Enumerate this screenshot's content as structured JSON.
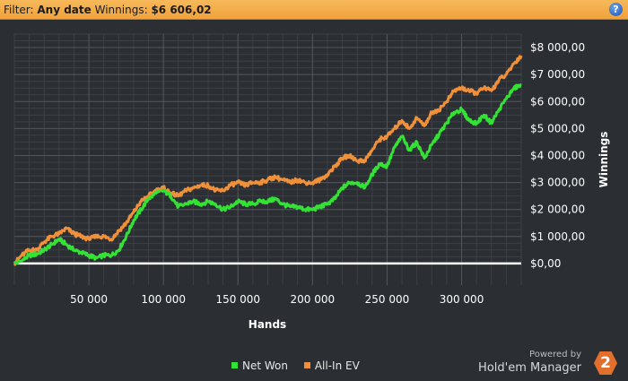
{
  "filter_bar": {
    "filter_label": "Filter:",
    "date_value": "Any date",
    "winnings_label": "Winnings:",
    "winnings_value": "$6 606,02"
  },
  "colors": {
    "net_won": "#33e234",
    "all_in_ev": "#f0913a",
    "zero_line": "#ffffff",
    "accent_bar": "#f0a23c"
  },
  "branding": {
    "powered_by": "Powered by",
    "product": "Hold'em Manager",
    "logo_number": "2"
  },
  "chart_data": {
    "type": "line",
    "xlabel": "Hands",
    "ylabel": "Winnings",
    "xlim": [
      0,
      340000
    ],
    "ylim": [
      -800,
      8500
    ],
    "x_ticks": [
      50000,
      100000,
      150000,
      200000,
      250000,
      300000
    ],
    "x_tick_labels": [
      "50 000",
      "100 000",
      "150 000",
      "200 000",
      "250 000",
      "300 000"
    ],
    "y_ticks": [
      0,
      1000,
      2000,
      3000,
      4000,
      5000,
      6000,
      7000,
      8000
    ],
    "y_tick_labels": [
      "$0,00",
      "$1 000,00",
      "$2 000,00",
      "$3 000,00",
      "$4 000,00",
      "$5 000,00",
      "$6 000,00",
      "$7 000,00",
      "$8 000,00"
    ],
    "legend_position": "bottom-center",
    "grid": true,
    "series": [
      {
        "name": "Net Won",
        "color": "#33e234",
        "points": [
          [
            0,
            0
          ],
          [
            5000,
            100
          ],
          [
            10000,
            300
          ],
          [
            15000,
            350
          ],
          [
            20000,
            500
          ],
          [
            25000,
            700
          ],
          [
            30000,
            900
          ],
          [
            35000,
            700
          ],
          [
            40000,
            500
          ],
          [
            45000,
            400
          ],
          [
            50000,
            300
          ],
          [
            55000,
            200
          ],
          [
            60000,
            300
          ],
          [
            65000,
            300
          ],
          [
            70000,
            500
          ],
          [
            75000,
            1000
          ],
          [
            80000,
            1600
          ],
          [
            85000,
            2000
          ],
          [
            90000,
            2400
          ],
          [
            95000,
            2600
          ],
          [
            100000,
            2700
          ],
          [
            105000,
            2500
          ],
          [
            110000,
            2100
          ],
          [
            115000,
            2200
          ],
          [
            120000,
            2300
          ],
          [
            125000,
            2200
          ],
          [
            130000,
            2300
          ],
          [
            135000,
            2200
          ],
          [
            140000,
            2000
          ],
          [
            145000,
            2100
          ],
          [
            150000,
            2300
          ],
          [
            155000,
            2200
          ],
          [
            160000,
            2200
          ],
          [
            165000,
            2300
          ],
          [
            170000,
            2300
          ],
          [
            175000,
            2400
          ],
          [
            180000,
            2200
          ],
          [
            185000,
            2100
          ],
          [
            190000,
            2100
          ],
          [
            195000,
            2000
          ],
          [
            200000,
            2000
          ],
          [
            205000,
            2100
          ],
          [
            210000,
            2200
          ],
          [
            215000,
            2400
          ],
          [
            220000,
            2800
          ],
          [
            225000,
            3000
          ],
          [
            230000,
            3000
          ],
          [
            235000,
            2800
          ],
          [
            240000,
            3300
          ],
          [
            245000,
            3700
          ],
          [
            250000,
            3600
          ],
          [
            255000,
            4300
          ],
          [
            260000,
            4700
          ],
          [
            265000,
            4200
          ],
          [
            270000,
            4500
          ],
          [
            275000,
            3900
          ],
          [
            280000,
            4400
          ],
          [
            285000,
            4800
          ],
          [
            290000,
            5200
          ],
          [
            295000,
            5600
          ],
          [
            300000,
            5700
          ],
          [
            305000,
            5300
          ],
          [
            310000,
            5200
          ],
          [
            315000,
            5500
          ],
          [
            320000,
            5200
          ],
          [
            325000,
            5700
          ],
          [
            330000,
            6100
          ],
          [
            335000,
            6500
          ],
          [
            340000,
            6606
          ]
        ]
      },
      {
        "name": "All-In EV",
        "color": "#f0913a",
        "points": [
          [
            0,
            0
          ],
          [
            5000,
            300
          ],
          [
            10000,
            500
          ],
          [
            15000,
            500
          ],
          [
            20000,
            800
          ],
          [
            25000,
            1000
          ],
          [
            30000,
            1100
          ],
          [
            35000,
            1300
          ],
          [
            40000,
            1100
          ],
          [
            45000,
            1000
          ],
          [
            50000,
            900
          ],
          [
            55000,
            1000
          ],
          [
            60000,
            1000
          ],
          [
            65000,
            900
          ],
          [
            70000,
            1200
          ],
          [
            75000,
            1500
          ],
          [
            80000,
            1900
          ],
          [
            85000,
            2300
          ],
          [
            90000,
            2500
          ],
          [
            95000,
            2700
          ],
          [
            100000,
            2800
          ],
          [
            105000,
            2600
          ],
          [
            110000,
            2500
          ],
          [
            115000,
            2700
          ],
          [
            120000,
            2800
          ],
          [
            125000,
            2900
          ],
          [
            130000,
            2900
          ],
          [
            135000,
            2700
          ],
          [
            140000,
            2700
          ],
          [
            145000,
            2900
          ],
          [
            150000,
            3000
          ],
          [
            155000,
            2900
          ],
          [
            160000,
            3000
          ],
          [
            165000,
            3000
          ],
          [
            170000,
            3100
          ],
          [
            175000,
            3200
          ],
          [
            180000,
            3100
          ],
          [
            185000,
            3000
          ],
          [
            190000,
            3100
          ],
          [
            195000,
            3000
          ],
          [
            200000,
            3000
          ],
          [
            205000,
            3100
          ],
          [
            210000,
            3300
          ],
          [
            215000,
            3600
          ],
          [
            220000,
            3900
          ],
          [
            225000,
            4000
          ],
          [
            230000,
            3800
          ],
          [
            235000,
            3800
          ],
          [
            240000,
            4200
          ],
          [
            245000,
            4600
          ],
          [
            250000,
            4700
          ],
          [
            255000,
            5000
          ],
          [
            260000,
            5300
          ],
          [
            265000,
            5000
          ],
          [
            270000,
            5400
          ],
          [
            275000,
            5100
          ],
          [
            280000,
            5600
          ],
          [
            285000,
            5700
          ],
          [
            290000,
            6000
          ],
          [
            295000,
            6400
          ],
          [
            300000,
            6500
          ],
          [
            305000,
            6400
          ],
          [
            310000,
            6300
          ],
          [
            315000,
            6500
          ],
          [
            320000,
            6400
          ],
          [
            325000,
            6800
          ],
          [
            330000,
            7000
          ],
          [
            335000,
            7400
          ],
          [
            340000,
            7700
          ]
        ]
      }
    ]
  }
}
